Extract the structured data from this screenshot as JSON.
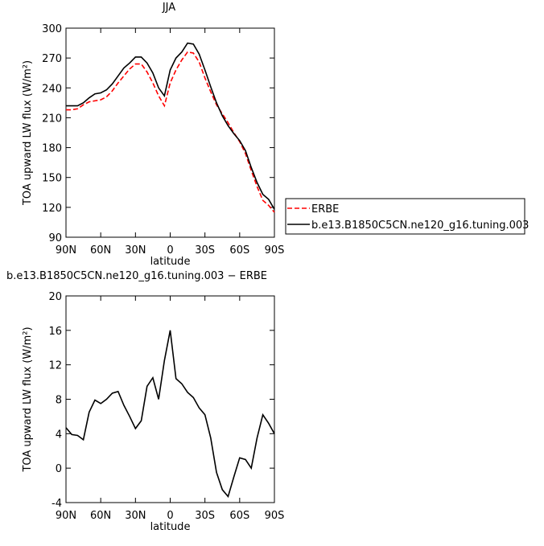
{
  "chart_data": [
    {
      "type": "line",
      "title": "JJA",
      "x_label": "latitude",
      "y_label": "TOA upward LW flux (W/m²)",
      "x": [
        90,
        85,
        80,
        75,
        70,
        65,
        60,
        55,
        50,
        45,
        40,
        35,
        30,
        25,
        20,
        15,
        10,
        5,
        0,
        -5,
        -10,
        -15,
        -20,
        -25,
        -30,
        -35,
        -40,
        -45,
        -50,
        -55,
        -60,
        -65,
        -70,
        -75,
        -80,
        -85,
        -90
      ],
      "xlim": [
        90,
        -90
      ],
      "xticks": [
        {
          "value": 90,
          "label": "90N"
        },
        {
          "value": 60,
          "label": "60N"
        },
        {
          "value": 30,
          "label": "30N"
        },
        0,
        {
          "value": -30,
          "label": "30S"
        },
        {
          "value": -60,
          "label": "60S"
        },
        {
          "value": -90,
          "label": "90S"
        }
      ],
      "ylim": [
        90,
        300
      ],
      "yticks": [
        90,
        120,
        150,
        180,
        210,
        240,
        270,
        300
      ],
      "legend": "right",
      "series": [
        {
          "name": "ERBE",
          "color": "#ff0000",
          "dash": true,
          "values": [
            218,
            218,
            219,
            223,
            226,
            227,
            228,
            231,
            237,
            245,
            252,
            259,
            264,
            264,
            256,
            245,
            232,
            222,
            245,
            258,
            268,
            276,
            275,
            266,
            250,
            236,
            223,
            214,
            205,
            195,
            186,
            174,
            157,
            141,
            127,
            122,
            115
          ]
        },
        {
          "name": "b.e13.B1850C5CN.ne120_g16.tuning.003",
          "color": "#000000",
          "dash": false,
          "values": [
            222,
            222,
            222,
            225,
            230,
            234,
            235,
            238,
            244,
            252,
            260,
            265,
            271,
            271,
            265,
            255,
            240,
            232,
            258,
            270,
            276,
            285,
            284,
            274,
            258,
            241,
            225,
            212,
            202,
            194,
            187,
            177,
            160,
            145,
            133,
            128,
            118
          ]
        }
      ]
    },
    {
      "type": "line",
      "title": "b.e13.B1850C5CN.ne120_g16.tuning.003 − ERBE",
      "x_label": "latitude",
      "y_label": "TOA upward LW flux (W/m²)",
      "x": [
        90,
        85,
        80,
        75,
        70,
        65,
        60,
        55,
        50,
        45,
        40,
        35,
        30,
        25,
        20,
        15,
        10,
        5,
        0,
        -5,
        -10,
        -15,
        -20,
        -25,
        -30,
        -35,
        -40,
        -45,
        -50,
        -55,
        -60,
        -65,
        -70,
        -75,
        -80,
        -85,
        -90
      ],
      "xlim": [
        90,
        -90
      ],
      "xticks": [
        {
          "value": 90,
          "label": "90N"
        },
        {
          "value": 60,
          "label": "60N"
        },
        {
          "value": 30,
          "label": "30N"
        },
        0,
        {
          "value": -30,
          "label": "30S"
        },
        {
          "value": -60,
          "label": "60S"
        },
        {
          "value": -90,
          "label": "90S"
        }
      ],
      "ylim": [
        -4,
        20
      ],
      "yticks": [
        -4,
        0,
        4,
        8,
        12,
        16,
        20
      ],
      "series": [
        {
          "color": "#000000",
          "values": [
            4.7,
            3.9,
            3.8,
            3.3,
            6.5,
            7.9,
            7.5,
            8.0,
            8.7,
            8.9,
            7.3,
            6.0,
            4.6,
            5.5,
            9.5,
            10.5,
            8.0,
            12.5,
            16.0,
            10.4,
            9.8,
            8.8,
            8.2,
            7.0,
            6.2,
            3.5,
            -0.5,
            -2.5,
            -3.3,
            -1.0,
            1.2,
            1.0,
            0.0,
            3.5,
            6.2,
            5.2,
            4.0
          ]
        }
      ]
    }
  ]
}
